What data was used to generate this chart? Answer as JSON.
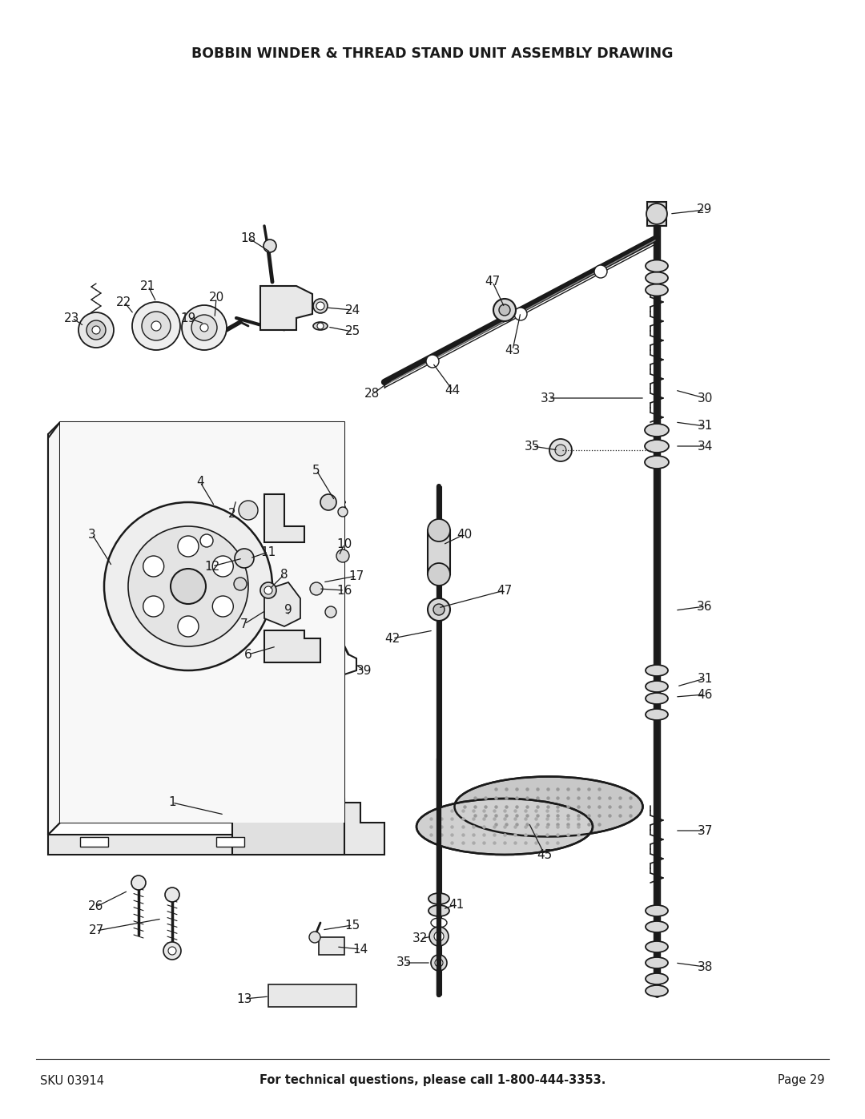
{
  "title": "BOBBIN WINDER & THREAD STAND UNIT ASSEMBLY DRAWING",
  "sku_text": "SKU 03914",
  "footer_center": "For technical questions, please call 1-800-444-3353.",
  "footer_right": "Page 29",
  "bg_color": "#ffffff",
  "title_fontsize": 12.5,
  "footer_fontsize": 10.5,
  "line_color": "#1a1a1a",
  "label_fontsize": 11
}
